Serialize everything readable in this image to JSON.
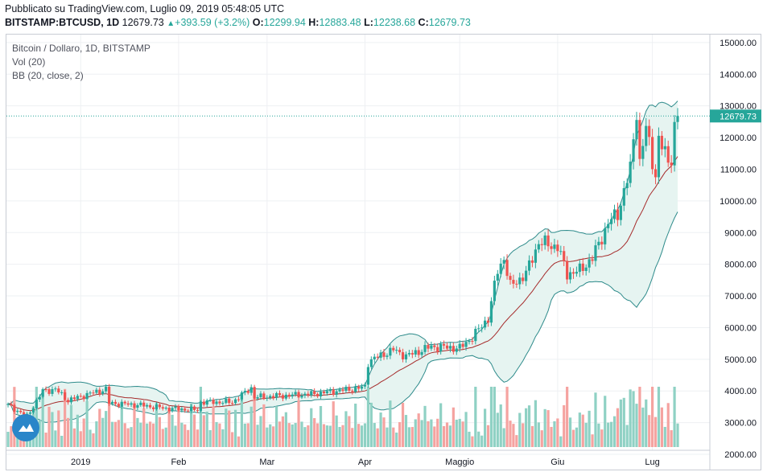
{
  "header": {
    "published": "Pubblicato su TradingView.com, Luglio 09, 2019 05:48:05 UTC",
    "symbol": "BITSTAMP:BTCUSD, 1D",
    "last": "12679.73",
    "change": "+393.59 (+3.2%)",
    "o_label": "O:",
    "o_value": "12299.94",
    "h_label": "H:",
    "h_value": "12883.48",
    "l_label": "L:",
    "l_value": "12238.68",
    "c_label": "C:",
    "c_value": "12679.73"
  },
  "legend": {
    "title": "Bitcoin / Dollaro, 1D, BITSTAMP",
    "volume": "Vol (20)",
    "bollinger": "BB (20, close, 2)"
  },
  "colors": {
    "up": "#26a69a",
    "down": "#ef5350",
    "vol_up": "#8fd1c4",
    "vol_down": "#f5a3a0",
    "bb_band": "#2e8b8b",
    "bb_basis": "#a52a2a",
    "bb_fill": "#e6f4f1",
    "price_label_bg": "#26a69a"
  },
  "chart_data": {
    "type": "candlestick",
    "title": "Bitcoin / Dollaro, 1D, BITSTAMP",
    "price_label": "12679.73",
    "y_ticks": [
      "2000.00",
      "3000.00",
      "4000.00",
      "5000.00",
      "6000.00",
      "7000.00",
      "8000.00",
      "9000.00",
      "10000.00",
      "11000.00",
      "12000.00",
      "13000.00",
      "14000.00",
      "15000.00"
    ],
    "ylim": [
      1950,
      15200
    ],
    "x_ticks": [
      {
        "label": "2019",
        "date": "2019-01-01"
      },
      {
        "label": "Feb",
        "date": "2019-02-01"
      },
      {
        "label": "Mar",
        "date": "2019-03-01"
      },
      {
        "label": "Apr",
        "date": "2019-04-01"
      },
      {
        "label": "Maggio",
        "date": "2019-05-01"
      },
      {
        "label": "Giu",
        "date": "2019-06-01"
      },
      {
        "label": "Lug",
        "date": "2019-07-01"
      }
    ],
    "start_date": "2018-12-09",
    "end_date": "2019-07-09",
    "close_anchors": [
      [
        "2018-12-09",
        3550
      ],
      [
        "2018-12-15",
        3200
      ],
      [
        "2018-12-20",
        4000
      ],
      [
        "2018-12-24",
        4050
      ],
      [
        "2018-12-28",
        3700
      ],
      [
        "2019-01-05",
        3950
      ],
      [
        "2019-01-09",
        4050
      ],
      [
        "2019-01-10",
        3620
      ],
      [
        "2019-01-20",
        3550
      ],
      [
        "2019-01-28",
        3450
      ],
      [
        "2019-02-07",
        3400
      ],
      [
        "2019-02-08",
        3650
      ],
      [
        "2019-02-18",
        3650
      ],
      [
        "2019-02-24",
        4100
      ],
      [
        "2019-02-25",
        3800
      ],
      [
        "2019-03-15",
        3900
      ],
      [
        "2019-03-31",
        4100
      ],
      [
        "2019-04-01",
        4150
      ],
      [
        "2019-04-02",
        4900
      ],
      [
        "2019-04-03",
        4980
      ],
      [
        "2019-04-10",
        5300
      ],
      [
        "2019-04-14",
        5100
      ],
      [
        "2019-04-22",
        5400
      ],
      [
        "2019-05-01",
        5350
      ],
      [
        "2019-05-05",
        5700
      ],
      [
        "2019-05-10",
        6300
      ],
      [
        "2019-05-13",
        7800
      ],
      [
        "2019-05-15",
        8200
      ],
      [
        "2019-05-17",
        7300
      ],
      [
        "2019-05-22",
        7700
      ],
      [
        "2019-05-26",
        8700
      ],
      [
        "2019-05-30",
        8600
      ],
      [
        "2019-06-01",
        8550
      ],
      [
        "2019-06-04",
        7700
      ],
      [
        "2019-06-08",
        7800
      ],
      [
        "2019-06-12",
        8200
      ],
      [
        "2019-06-17",
        9300
      ],
      [
        "2019-06-20",
        9600
      ],
      [
        "2019-06-24",
        11000
      ],
      [
        "2019-06-26",
        12900
      ],
      [
        "2019-06-27",
        11200
      ],
      [
        "2019-06-29",
        12300
      ],
      [
        "2019-07-02",
        10800
      ],
      [
        "2019-07-03",
        11900
      ],
      [
        "2019-07-06",
        11300
      ],
      [
        "2019-07-07",
        11400
      ],
      [
        "2019-07-08",
        12286
      ],
      [
        "2019-07-09",
        12679.73
      ]
    ],
    "volume": "relative daily volume bars, same colors as candles",
    "indicators": [
      "Vol (20)",
      "BB (20, close, 2)"
    ]
  }
}
